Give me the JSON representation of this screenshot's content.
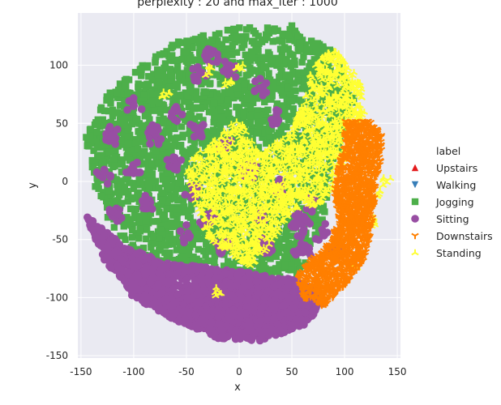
{
  "chart_data": {
    "type": "scatter",
    "title": "perplexity : 20 and max_iter : 1000",
    "xlabel": "x",
    "ylabel": "y",
    "xlim": [
      -153,
      153
    ],
    "ylim": [
      -152,
      145
    ],
    "xticks": [
      -150,
      -100,
      -50,
      0,
      50,
      100,
      150
    ],
    "yticks": [
      100,
      50,
      0,
      -50,
      -100,
      -150
    ],
    "grid": true,
    "background": "#eaeaf2",
    "legend": {
      "title": "label",
      "placement": "right"
    },
    "series": [
      {
        "name": "Upstairs",
        "color": "#e41a1c",
        "marker": "triangle-up",
        "region": []
      },
      {
        "name": "Walking",
        "color": "#377eb8",
        "marker": "triangle-down",
        "region": []
      },
      {
        "name": "Jogging",
        "color": "#4daf4a",
        "marker": "square",
        "region": [
          [
            -145,
            38
          ],
          [
            -130,
            70
          ],
          [
            -100,
            95
          ],
          [
            -60,
            120
          ],
          [
            0,
            133
          ],
          [
            50,
            132
          ],
          [
            90,
            112
          ],
          [
            110,
            75
          ],
          [
            100,
            40
          ],
          [
            90,
            10
          ],
          [
            80,
            -35
          ],
          [
            60,
            -80
          ],
          [
            20,
            -90
          ],
          [
            -20,
            -85
          ],
          [
            -60,
            -75
          ],
          [
            -100,
            -60
          ],
          [
            -120,
            -40
          ],
          [
            -140,
            0
          ]
        ],
        "outliers": [
          [
            50,
            134
          ],
          [
            -145,
            38
          ]
        ]
      },
      {
        "name": "Sitting",
        "color": "#984ea3",
        "marker": "circle",
        "region": [
          [
            -145,
            -30
          ],
          [
            -130,
            -65
          ],
          [
            -100,
            -100
          ],
          [
            -60,
            -120
          ],
          [
            -20,
            -135
          ],
          [
            20,
            -137
          ],
          [
            60,
            -125
          ],
          [
            80,
            -105
          ],
          [
            60,
            -85
          ],
          [
            20,
            -80
          ],
          [
            -20,
            -75
          ],
          [
            -70,
            -70
          ],
          [
            -110,
            -55
          ],
          [
            -130,
            -40
          ]
        ],
        "clusters": [
          [
            -90,
            -20
          ],
          [
            -100,
            10
          ],
          [
            -60,
            15
          ],
          [
            -45,
            -10
          ],
          [
            -80,
            40
          ],
          [
            -100,
            65
          ],
          [
            -60,
            60
          ],
          [
            -40,
            90
          ],
          [
            -25,
            110
          ],
          [
            -10,
            95
          ],
          [
            20,
            80
          ],
          [
            -40,
            45
          ],
          [
            -15,
            30
          ],
          [
            10,
            10
          ],
          [
            -30,
            -30
          ],
          [
            20,
            -30
          ],
          [
            55,
            -40
          ],
          [
            60,
            -60
          ],
          [
            25,
            -55
          ],
          [
            -15,
            -55
          ],
          [
            -55,
            -45
          ],
          [
            -120,
            -30
          ],
          [
            -130,
            5
          ],
          [
            40,
            -5
          ],
          [
            70,
            -20
          ],
          [
            80,
            -45
          ],
          [
            90,
            -60
          ],
          [
            -120,
            40
          ],
          [
            35,
            55
          ],
          [
            60,
            -35
          ]
        ]
      },
      {
        "name": "Downstairs",
        "color": "#ff7f00",
        "marker": "tri-down",
        "region": [
          [
            100,
            52
          ],
          [
            125,
            52
          ],
          [
            135,
            40
          ],
          [
            135,
            20
          ],
          [
            130,
            0
          ],
          [
            128,
            -20
          ],
          [
            125,
            -45
          ],
          [
            118,
            -70
          ],
          [
            100,
            -90
          ],
          [
            80,
            -108
          ],
          [
            60,
            -100
          ],
          [
            55,
            -80
          ],
          [
            70,
            -65
          ],
          [
            80,
            -60
          ],
          [
            95,
            -35
          ],
          [
            90,
            -10
          ],
          [
            95,
            15
          ],
          [
            100,
            35
          ]
        ]
      },
      {
        "name": "Standing",
        "color": "#ffff33",
        "marker": "tri-up",
        "region": [
          [
            -45,
            20
          ],
          [
            -20,
            40
          ],
          [
            0,
            55
          ],
          [
            20,
            25
          ],
          [
            45,
            40
          ],
          [
            60,
            70
          ],
          [
            70,
            100
          ],
          [
            90,
            115
          ],
          [
            105,
            100
          ],
          [
            115,
            85
          ],
          [
            120,
            60
          ],
          [
            110,
            40
          ],
          [
            100,
            20
          ],
          [
            90,
            -5
          ],
          [
            75,
            -20
          ],
          [
            50,
            -25
          ],
          [
            30,
            -55
          ],
          [
            10,
            -75
          ],
          [
            -10,
            -60
          ],
          [
            -30,
            -50
          ],
          [
            -40,
            -20
          ],
          [
            -50,
            5
          ]
        ],
        "outliers": [
          [
            -10,
            85
          ],
          [
            -30,
            95
          ],
          [
            0,
            100
          ],
          [
            130,
            -10
          ],
          [
            140,
            0
          ],
          [
            125,
            -35
          ],
          [
            110,
            -75
          ],
          [
            -70,
            75
          ],
          [
            -20,
            -95
          ],
          [
            60,
            -10
          ]
        ]
      }
    ]
  }
}
